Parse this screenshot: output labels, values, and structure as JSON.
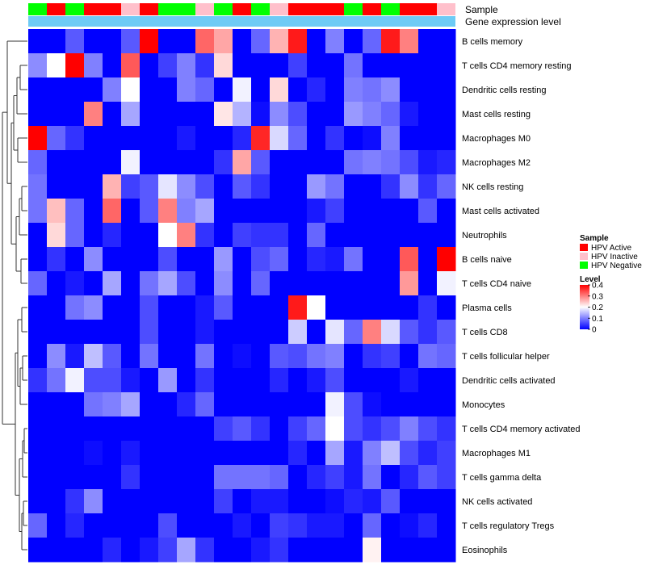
{
  "chart_data": {
    "type": "heatmap",
    "title": "",
    "annotation_rows": [
      "Sample",
      "Gene expression level"
    ],
    "columns": 23,
    "sample_groups": [
      "HPV Negative",
      "HPV Active",
      "HPV Negative",
      "HPV Active",
      "HPV Active",
      "HPV Inactive",
      "HPV Active",
      "HPV Negative",
      "HPV Negative",
      "HPV Inactive",
      "HPV Negative",
      "HPV Active",
      "HPV Negative",
      "HPV Inactive",
      "HPV Active",
      "HPV Active",
      "HPV Active",
      "HPV Negative",
      "HPV Active",
      "HPV Negative",
      "HPV Active",
      "HPV Active",
      "HPV Inactive"
    ],
    "rows": [
      "B cells memory",
      "T cells CD4 memory resting",
      "Dendritic cells resting",
      "Mast cells resting",
      "Macrophages M0",
      "Macrophages M2",
      "NK cells resting",
      "Mast cells activated",
      "Neutrophils",
      "B cells naive",
      "T cells CD4 naive",
      "Plasma cells",
      "T cells CD8",
      "T cells follicular helper",
      "Dendritic cells activated",
      "Monocytes",
      "T cells CD4 memory activated",
      "Macrophages M1",
      "T cells gamma delta",
      "NK cells activated",
      "T cells regulatory  Tregs",
      "Eosinophils"
    ],
    "values": [
      [
        0,
        0,
        0.07,
        0,
        0,
        0.07,
        0.4,
        0,
        0,
        0.32,
        0.27,
        0,
        0.08,
        0.26,
        0.38,
        0,
        0.1,
        0,
        0.08,
        0.38,
        0.3,
        0,
        0
      ],
      [
        0.11,
        0.2,
        0.4,
        0.1,
        0,
        0.33,
        0,
        0.05,
        0.1,
        0.04,
        0.23,
        0,
        0,
        0,
        0.05,
        0,
        0,
        0.09,
        0,
        0,
        0,
        0,
        0
      ],
      [
        0,
        0,
        0,
        0,
        0.1,
        0.2,
        0,
        0,
        0.1,
        0.08,
        0,
        0.19,
        0,
        0.23,
        0,
        0.03,
        0,
        0.1,
        0.09,
        0.11,
        0,
        0,
        0
      ],
      [
        0,
        0,
        0,
        0.3,
        0,
        0.13,
        0,
        0,
        0,
        0,
        0.22,
        0.14,
        0.01,
        0.11,
        0.06,
        0,
        0,
        0.12,
        0.1,
        0.08,
        0.02,
        0,
        0
      ],
      [
        0.4,
        0.08,
        0.04,
        0,
        0,
        0,
        0,
        0,
        0.02,
        0,
        0,
        0.03,
        0.37,
        0.17,
        0.08,
        0,
        0.04,
        0,
        0.01,
        0.1,
        0,
        0,
        0
      ],
      [
        0.08,
        0,
        0,
        0,
        0,
        0.19,
        0,
        0,
        0,
        0,
        0.04,
        0.27,
        0.07,
        0,
        0,
        0,
        0,
        0.09,
        0.1,
        0.09,
        0.06,
        0.02,
        0.03
      ],
      [
        0.09,
        0,
        0,
        0,
        0.26,
        0.05,
        0.07,
        0.18,
        0.11,
        0.06,
        0,
        0.07,
        0.04,
        0,
        0,
        0.12,
        0.09,
        0,
        0,
        0.04,
        0.11,
        0.04,
        0.08
      ],
      [
        0.09,
        0.25,
        0.08,
        0,
        0.32,
        0,
        0.07,
        0.3,
        0.1,
        0.13,
        0,
        0,
        0,
        0,
        0,
        0.02,
        0.05,
        0,
        0,
        0,
        0,
        0.07,
        0
      ],
      [
        0,
        0.23,
        0.08,
        0,
        0.03,
        0,
        0,
        0.2,
        0.3,
        0.04,
        0,
        0.05,
        0.04,
        0.04,
        0,
        0.08,
        0,
        0,
        0,
        0,
        0,
        0,
        0
      ],
      [
        0,
        0.04,
        0,
        0.11,
        0,
        0,
        0,
        0.06,
        0,
        0,
        0.12,
        0,
        0.06,
        0.08,
        0,
        0.03,
        0.02,
        0.09,
        0,
        0,
        0.33,
        0,
        0.4
      ],
      [
        0.08,
        0,
        0.02,
        0,
        0.13,
        0,
        0.09,
        0.13,
        0.06,
        0,
        0.11,
        0,
        0.08,
        0,
        0,
        0,
        0,
        0,
        0,
        0,
        0.28,
        0,
        0.19
      ],
      [
        0,
        0,
        0.09,
        0.11,
        0,
        0,
        0.06,
        0,
        0,
        0.02,
        0.07,
        0,
        0,
        0,
        0.38,
        0.2,
        0,
        0,
        0,
        0,
        0,
        0.04,
        0
      ],
      [
        0,
        0,
        0,
        0,
        0,
        0,
        0.06,
        0,
        0,
        0.02,
        0,
        0,
        0,
        0,
        0.16,
        0,
        0.18,
        0.08,
        0.3,
        0.17,
        0.07,
        0.04,
        0.07
      ],
      [
        0,
        0.11,
        0.02,
        0.15,
        0.07,
        0,
        0.09,
        0,
        0,
        0.09,
        0,
        0.01,
        0,
        0.07,
        0.06,
        0.09,
        0.1,
        0,
        0.04,
        0.05,
        0,
        0.09,
        0.08
      ],
      [
        0.04,
        0.09,
        0.19,
        0.06,
        0.06,
        0.02,
        0,
        0.12,
        0,
        0.04,
        0,
        0,
        0,
        0.03,
        0,
        0.02,
        0.06,
        0,
        0,
        0,
        0.02,
        0,
        0
      ],
      [
        0,
        0,
        0,
        0.09,
        0.1,
        0.13,
        0,
        0,
        0.03,
        0.08,
        0,
        0,
        0,
        0,
        0,
        0,
        0.19,
        0.06,
        0.01,
        0,
        0,
        0,
        0
      ],
      [
        0,
        0,
        0,
        0,
        0,
        0,
        0,
        0,
        0,
        0,
        0.05,
        0.07,
        0.04,
        0,
        0.05,
        0.08,
        0.2,
        0.06,
        0.04,
        0.06,
        0.1,
        0.06,
        0.04
      ],
      [
        0,
        0,
        0,
        0.01,
        0,
        0.02,
        0,
        0,
        0,
        0,
        0,
        0,
        0,
        0,
        0.03,
        0,
        0.13,
        0.02,
        0.1,
        0.15,
        0.06,
        0.03,
        0.05
      ],
      [
        0,
        0,
        0,
        0,
        0,
        0.04,
        0,
        0,
        0,
        0,
        0.09,
        0.09,
        0.09,
        0.08,
        0,
        0.03,
        0.05,
        0.02,
        0.09,
        0,
        0.03,
        0.07,
        0.05
      ],
      [
        0,
        0,
        0.04,
        0.11,
        0,
        0,
        0,
        0,
        0,
        0,
        0.05,
        0,
        0.02,
        0.02,
        0,
        0,
        0.01,
        0.03,
        0.02,
        0.07,
        0,
        0,
        0
      ],
      [
        0.08,
        0,
        0.03,
        0,
        0,
        0,
        0,
        0.06,
        0,
        0,
        0,
        0.02,
        0,
        0.05,
        0.04,
        0.02,
        0.02,
        0,
        0.08,
        0,
        0.01,
        0.03,
        0
      ],
      [
        0,
        0,
        0,
        0,
        0.03,
        0,
        0.02,
        0.05,
        0.13,
        0.04,
        0,
        0,
        0.02,
        0.04,
        0,
        0,
        0,
        0,
        0.21,
        0,
        0,
        0,
        0
      ]
    ],
    "color_scale": {
      "min": 0,
      "max": 0.4,
      "low_color": "#0000ff",
      "mid_color": "#ffffff",
      "high_color": "#ff0000"
    },
    "legend": {
      "sample_title": "Sample",
      "sample_entries": [
        {
          "label": "HPV Active",
          "color": "#ff0000"
        },
        {
          "label": "HPV Inactive",
          "color": "#ffc0cb"
        },
        {
          "label": "HPV Negative",
          "color": "#00ff00"
        }
      ],
      "level_title": "Level",
      "level_ticks": [
        "0.4",
        "0.3",
        "0.2",
        "0.1",
        "0"
      ],
      "level_tick_values": [
        0.4,
        0.3,
        0.2,
        0.1,
        0
      ]
    },
    "expression_bar_color": "#6ecbf5",
    "position": "right"
  }
}
